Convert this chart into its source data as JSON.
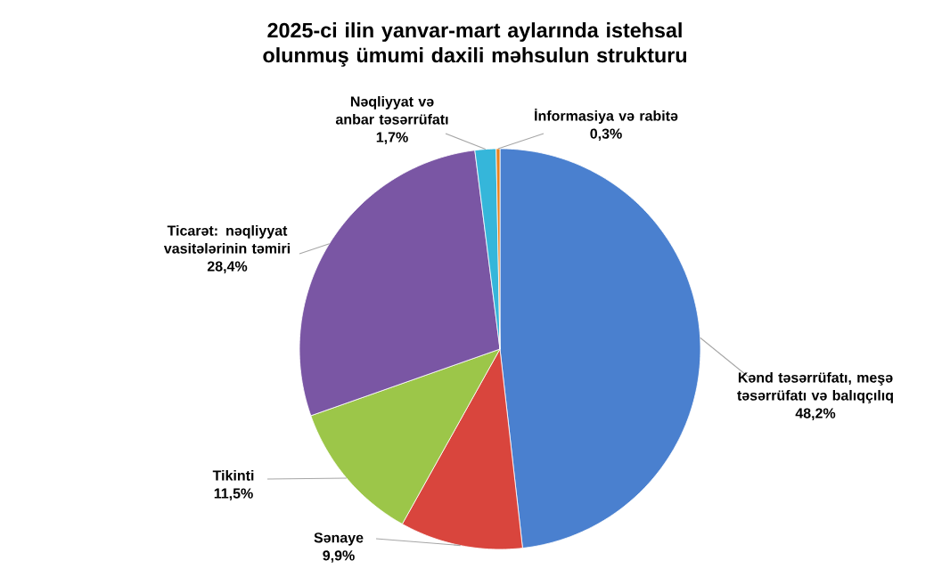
{
  "chart_data": {
    "type": "pie",
    "title": "2025-ci ilin yanvar-mart aylarında istehsal olunmuş ümumi daxili məhsulun strukturu",
    "categories": [
      "Kənd təsərrüfatı, meşə təsərrüfatı və balıqçılıq",
      "Sənaye",
      "Tikinti",
      "Ticarət: nəqliyyat vasitələrinin təmiri",
      "Nəqliyyat və anbar təsərrüfatı",
      "İnformasiya və rabitə"
    ],
    "values": [
      48.2,
      9.9,
      11.5,
      28.4,
      1.7,
      0.3
    ],
    "value_labels": [
      "48,2%",
      "9,9%",
      "11,5%",
      "28,4%",
      "1,7%",
      "0,3%"
    ],
    "colors": [
      "#4a80cf",
      "#d9453d",
      "#9cc649",
      "#7a56a4",
      "#35b6da",
      "#e8821e"
    ]
  }
}
